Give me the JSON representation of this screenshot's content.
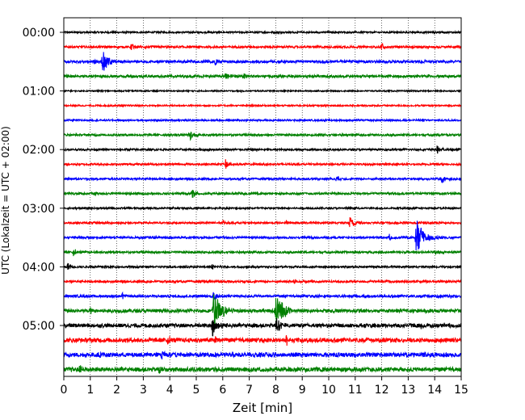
{
  "chart_data": {
    "type": "line",
    "title": "",
    "xlabel": "Zeit  [min]",
    "ylabel": "UTC (Lokalzeit = UTC + 02:00)",
    "xlim": [
      0,
      15
    ],
    "x_ticks": [
      "0",
      "1",
      "2",
      "3",
      "4",
      "5",
      "6",
      "7",
      "8",
      "9",
      "10",
      "11",
      "12",
      "13",
      "14",
      "15"
    ],
    "y_ticks": [
      "00:00",
      "01:00",
      "02:00",
      "03:00",
      "04:00",
      "05:00"
    ],
    "row_minutes": 15,
    "grid": "vertical-dotted",
    "trace_colors": [
      "#000000",
      "#ff0000",
      "#0000ff",
      "#008000"
    ],
    "series": [
      {
        "start": "00:00",
        "color": "#000000",
        "noise": 0.08,
        "events": [
          {
            "x": 8.1,
            "amp": 0.12
          }
        ]
      },
      {
        "start": "00:15",
        "color": "#ff0000",
        "noise": 0.1,
        "events": [
          {
            "x": 2.55,
            "amp": 0.45
          },
          {
            "x": 12.0,
            "amp": 0.35
          }
        ]
      },
      {
        "start": "00:30",
        "color": "#0000ff",
        "noise": 0.12,
        "events": [
          {
            "x": 1.45,
            "amp": 1.2
          },
          {
            "x": 5.7,
            "amp": 0.4
          },
          {
            "x": 1.1,
            "amp": 0.35
          }
        ]
      },
      {
        "start": "00:45",
        "color": "#008000",
        "noise": 0.12,
        "events": [
          {
            "x": 6.1,
            "amp": 0.45
          },
          {
            "x": 6.8,
            "amp": 0.25
          }
        ]
      },
      {
        "start": "01:00",
        "color": "#000000",
        "noise": 0.06,
        "events": []
      },
      {
        "start": "01:15",
        "color": "#ff0000",
        "noise": 0.07,
        "events": []
      },
      {
        "start": "01:30",
        "color": "#0000ff",
        "noise": 0.08,
        "events": [
          {
            "x": 13.5,
            "amp": 0.2
          }
        ]
      },
      {
        "start": "01:45",
        "color": "#008000",
        "noise": 0.1,
        "events": [
          {
            "x": 4.75,
            "amp": 0.6
          },
          {
            "x": 14.0,
            "amp": 0.15
          }
        ]
      },
      {
        "start": "02:00",
        "color": "#000000",
        "noise": 0.09,
        "events": [
          {
            "x": 14.1,
            "amp": 0.45
          },
          {
            "x": 10.3,
            "amp": 0.15
          }
        ]
      },
      {
        "start": "02:15",
        "color": "#ff0000",
        "noise": 0.09,
        "events": [
          {
            "x": 6.1,
            "amp": 0.55
          }
        ]
      },
      {
        "start": "02:30",
        "color": "#0000ff",
        "noise": 0.09,
        "events": [
          {
            "x": 10.3,
            "amp": 0.35
          },
          {
            "x": 14.25,
            "amp": 0.6
          }
        ]
      },
      {
        "start": "02:45",
        "color": "#008000",
        "noise": 0.1,
        "events": [
          {
            "x": 4.85,
            "amp": 0.5
          },
          {
            "x": 1.2,
            "amp": 0.3
          },
          {
            "x": 11.7,
            "amp": 0.15
          }
        ]
      },
      {
        "start": "03:00",
        "color": "#000000",
        "noise": 0.08,
        "events": [
          {
            "x": 4.1,
            "amp": 0.15
          },
          {
            "x": 11.0,
            "amp": 0.15
          }
        ]
      },
      {
        "start": "03:15",
        "color": "#ff0000",
        "noise": 0.09,
        "events": [
          {
            "x": 10.8,
            "amp": 0.7
          },
          {
            "x": 6.0,
            "amp": 0.3
          },
          {
            "x": 8.4,
            "amp": 0.2
          }
        ]
      },
      {
        "start": "03:30",
        "color": "#0000ff",
        "noise": 0.1,
        "events": [
          {
            "x": 13.3,
            "amp": 1.8
          },
          {
            "x": 6.0,
            "amp": 0.3
          },
          {
            "x": 12.3,
            "amp": 0.4
          }
        ]
      },
      {
        "start": "03:45",
        "color": "#008000",
        "noise": 0.1,
        "events": [
          {
            "x": 0.35,
            "amp": 0.45
          },
          {
            "x": 14.0,
            "amp": 0.3
          }
        ]
      },
      {
        "start": "04:00",
        "color": "#000000",
        "noise": 0.09,
        "events": [
          {
            "x": 0.15,
            "amp": 0.5
          },
          {
            "x": 5.6,
            "amp": 0.25
          }
        ]
      },
      {
        "start": "04:15",
        "color": "#ff0000",
        "noise": 0.1,
        "events": [
          {
            "x": 8.7,
            "amp": 0.3
          },
          {
            "x": 5.5,
            "amp": 0.2
          }
        ]
      },
      {
        "start": "04:30",
        "color": "#0000ff",
        "noise": 0.12,
        "events": [
          {
            "x": 2.2,
            "amp": 0.3
          },
          {
            "x": 5.65,
            "amp": 0.5
          },
          {
            "x": 11.3,
            "amp": 0.25
          }
        ]
      },
      {
        "start": "04:45",
        "color": "#008000",
        "noise": 0.16,
        "events": [
          {
            "x": 5.65,
            "amp": 1.9
          },
          {
            "x": 8.0,
            "amp": 1.9
          },
          {
            "x": 1.0,
            "amp": 0.3
          }
        ]
      },
      {
        "start": "05:00",
        "color": "#000000",
        "noise": 0.18,
        "events": [
          {
            "x": 5.6,
            "amp": 1.2
          },
          {
            "x": 8.0,
            "amp": 0.9
          },
          {
            "x": 13.5,
            "amp": 0.3
          }
        ]
      },
      {
        "start": "05:15",
        "color": "#ff0000",
        "noise": 0.2,
        "events": [
          {
            "x": 3.9,
            "amp": 0.5
          },
          {
            "x": 8.4,
            "amp": 0.6
          },
          {
            "x": 5.7,
            "amp": 0.5
          }
        ]
      },
      {
        "start": "05:30",
        "color": "#0000ff",
        "noise": 0.2,
        "events": [
          {
            "x": 3.7,
            "amp": 0.5
          },
          {
            "x": 1.4,
            "amp": 0.3
          },
          {
            "x": 14.3,
            "amp": 0.25
          }
        ]
      },
      {
        "start": "05:45",
        "color": "#008000",
        "noise": 0.2,
        "events": [
          {
            "x": 0.6,
            "amp": 0.5
          },
          {
            "x": 3.6,
            "amp": 0.4
          }
        ]
      }
    ]
  }
}
